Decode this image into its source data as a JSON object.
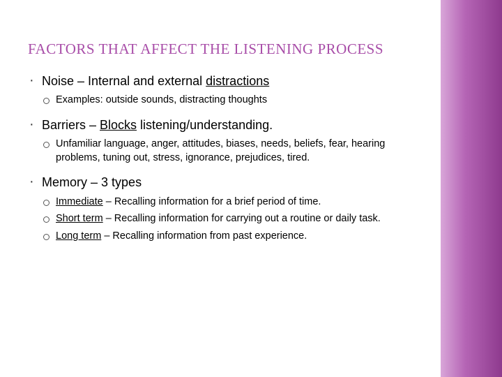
{
  "title": "FACTORS THAT AFFECT THE LISTENING PROCESS",
  "items": [
    {
      "lead": "Noise",
      "dash": " – ",
      "plain": "Internal and external ",
      "under": "distractions",
      "subs": [
        {
          "lead": "Examples:",
          "text": " outside sounds, distracting thoughts"
        }
      ]
    },
    {
      "lead": "Barriers",
      "dash": " – ",
      "under": "Blocks",
      "plain2": " listening/understanding.",
      "subs": [
        {
          "lead": "Unfamiliar",
          "text": " language, anger, attitudes, biases, needs, beliefs, fear, hearing problems, tuning out, stress, ignorance, prejudices, tired."
        }
      ]
    },
    {
      "lead": "Memory",
      "dash": " – ",
      "plain": "3 types",
      "subs": [
        {
          "ulead": "Immediate",
          "text": " – Recalling information for a brief period of time."
        },
        {
          "ulead": "Short term",
          "text": " – Recalling information for carrying out a routine or daily task."
        },
        {
          "ulead": "Long term",
          "text": " – Recalling information from past experience."
        }
      ]
    }
  ],
  "colors": {
    "title": "#a84da8",
    "text": "#000000",
    "bg": "#ffffff",
    "sidebar_start": "#d9a6d9",
    "sidebar_end": "#8e3a8e"
  },
  "fonts": {
    "title_size": 21,
    "main_size": 18,
    "sub_size": 14.5
  }
}
